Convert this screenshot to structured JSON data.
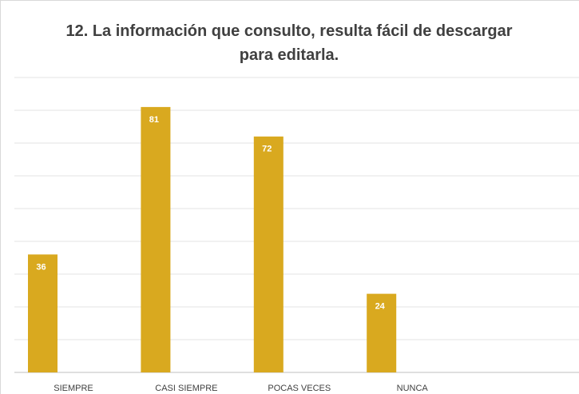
{
  "chart_data": {
    "type": "bar",
    "title": "12. La información que consulto, resulta fácil de descargar para editarla.",
    "categories": [
      "SIEMPRE",
      "CASI SIEMPRE",
      "POCAS VECES",
      "NUNCA",
      null
    ],
    "values": [
      36,
      81,
      72,
      24,
      null
    ],
    "color": "#d9a91f",
    "ylim": [
      0,
      90
    ],
    "yticks": [
      0,
      10,
      20,
      30,
      40,
      50,
      60,
      70,
      80,
      90
    ],
    "grid": true
  }
}
